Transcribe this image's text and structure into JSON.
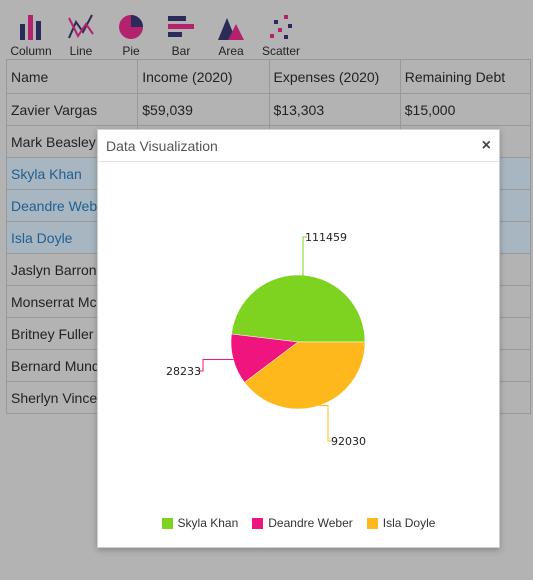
{
  "toolbar": {
    "items": [
      {
        "label": "Column",
        "icon": "column-chart-icon"
      },
      {
        "label": "Line",
        "icon": "line-chart-icon"
      },
      {
        "label": "Pie",
        "icon": "pie-chart-icon"
      },
      {
        "label": "Bar",
        "icon": "bar-chart-icon"
      },
      {
        "label": "Area",
        "icon": "area-chart-icon"
      },
      {
        "label": "Scatter",
        "icon": "scatter-chart-icon"
      }
    ]
  },
  "grid": {
    "headers": [
      "Name",
      "Income (2020)",
      "Expenses (2020)",
      "Remaining Debt"
    ],
    "rows": [
      {
        "cells": [
          "Zavier Vargas",
          "$59,039",
          "$13,303",
          "$15,000"
        ],
        "selected": false
      },
      {
        "cells": [
          "Mark Beasley",
          "",
          "",
          ""
        ],
        "selected": false
      },
      {
        "cells": [
          "Skyla Khan",
          "",
          "",
          ""
        ],
        "selected": true
      },
      {
        "cells": [
          "Deandre Weber",
          "",
          "",
          ""
        ],
        "selected": true
      },
      {
        "cells": [
          "Isla Doyle",
          "",
          "",
          ""
        ],
        "selected": true
      },
      {
        "cells": [
          "Jaslyn Barron",
          "",
          "",
          ""
        ],
        "selected": false
      },
      {
        "cells": [
          "Monserrat Mc",
          "",
          "",
          ""
        ],
        "selected": false
      },
      {
        "cells": [
          "Britney Fuller",
          "",
          "",
          ""
        ],
        "selected": false
      },
      {
        "cells": [
          "Bernard Mund",
          "",
          "",
          ""
        ],
        "selected": false
      },
      {
        "cells": [
          "Sherlyn Vince",
          "",
          "",
          ""
        ],
        "selected": false
      }
    ]
  },
  "modal": {
    "title": "Data Visualization",
    "close_symbol": "×"
  },
  "chart_data": {
    "type": "pie",
    "series": [
      {
        "name": "Skyla Khan",
        "value": 111459,
        "color": "#7ed321"
      },
      {
        "name": "Deandre Weber",
        "value": 28233,
        "color": "#f0147f"
      },
      {
        "name": "Isla Doyle",
        "value": 92030,
        "color": "#ffb81c"
      }
    ],
    "legend_position": "bottom"
  }
}
